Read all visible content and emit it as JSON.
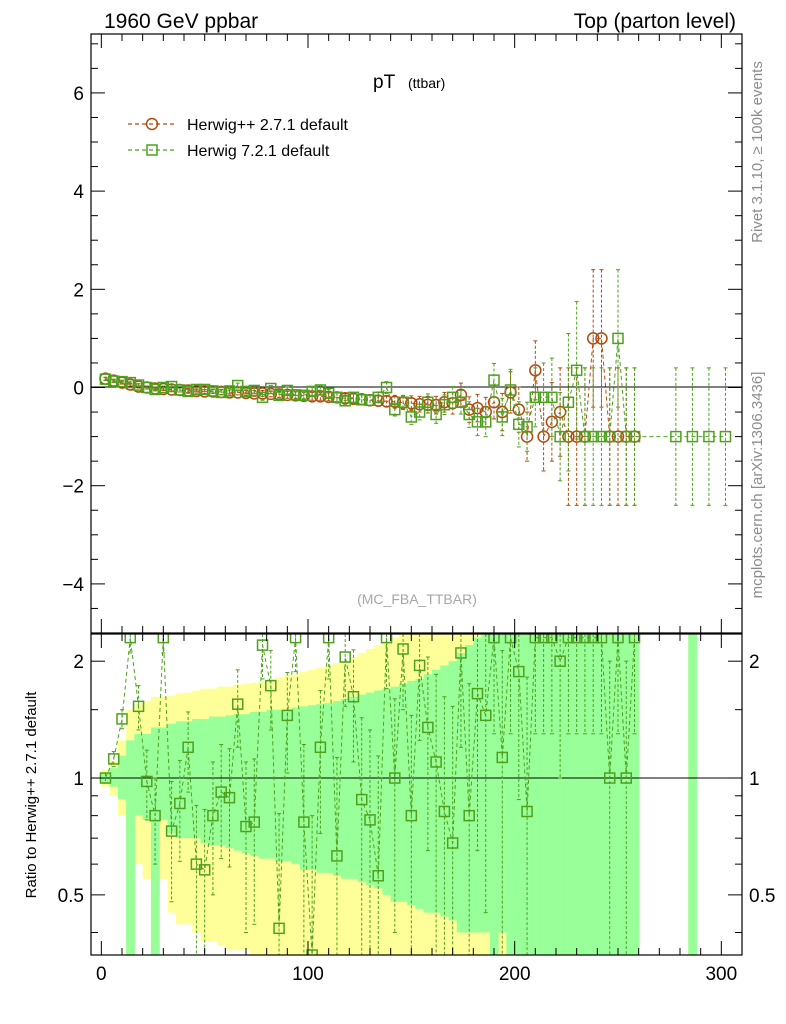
{
  "header": {
    "left": "1960 GeV ppbar",
    "right": "Top (parton level)"
  },
  "side_labels": {
    "rivet": "Rivet 3.1.10, ≥ 100k events",
    "mcplots": "mcplots.cern.ch [arXiv:1306.3436]"
  },
  "chart_data": [
    {
      "type": "line",
      "title_main": "pT",
      "title_sub": "(ttbar)",
      "watermark": "(MC_FBA_TTBAR)",
      "xlim": [
        -5,
        310
      ],
      "ylim": [
        -5,
        7.2
      ],
      "yticks": [
        -4,
        -2,
        0,
        2,
        4,
        6
      ],
      "ytick_labels": [
        "−4",
        "−2",
        "0",
        "2",
        "4",
        "6"
      ],
      "legend_position": "top-left",
      "series": [
        {
          "name": "Herwig++ 2.7.1 default",
          "color": "#b04a0e",
          "marker": "circle",
          "x": [
            2,
            6,
            10,
            14,
            18,
            22,
            26,
            30,
            34,
            38,
            42,
            46,
            50,
            54,
            58,
            62,
            66,
            70,
            74,
            78,
            82,
            86,
            90,
            94,
            98,
            102,
            106,
            110,
            114,
            118,
            122,
            126,
            130,
            134,
            138,
            142,
            146,
            150,
            154,
            158,
            162,
            166,
            170,
            174,
            178,
            182,
            186,
            190,
            194,
            198,
            202,
            206,
            210,
            214,
            218,
            222,
            226,
            230,
            234,
            238,
            242,
            246,
            250,
            254,
            258
          ],
          "y": [
            0.18,
            0.14,
            0.1,
            0.06,
            0.02,
            0.0,
            -0.02,
            -0.03,
            -0.04,
            -0.05,
            -0.06,
            -0.07,
            -0.08,
            -0.08,
            -0.09,
            -0.1,
            -0.1,
            -0.11,
            -0.12,
            -0.12,
            -0.13,
            -0.14,
            -0.15,
            -0.16,
            -0.17,
            -0.18,
            -0.18,
            -0.19,
            -0.2,
            -0.22,
            -0.23,
            -0.24,
            -0.26,
            -0.27,
            -0.28,
            -0.29,
            -0.31,
            -0.32,
            -0.34,
            -0.35,
            -0.36,
            -0.3,
            -0.32,
            -0.15,
            -0.45,
            -0.42,
            -0.5,
            -0.3,
            -0.5,
            -0.1,
            -0.45,
            -1.0,
            0.35,
            -1.0,
            -0.7,
            -0.5,
            -1.0,
            -1.0,
            -1.0,
            1.0,
            1.0,
            -1.0,
            -1.0,
            -1.0,
            -1.0
          ],
          "yerr": [
            0.03,
            0.03,
            0.03,
            0.03,
            0.03,
            0.03,
            0.03,
            0.03,
            0.03,
            0.04,
            0.04,
            0.04,
            0.04,
            0.04,
            0.05,
            0.05,
            0.05,
            0.05,
            0.06,
            0.06,
            0.06,
            0.06,
            0.07,
            0.07,
            0.07,
            0.08,
            0.08,
            0.08,
            0.09,
            0.09,
            0.1,
            0.1,
            0.11,
            0.11,
            0.12,
            0.13,
            0.14,
            0.15,
            0.16,
            0.17,
            0.18,
            0.2,
            0.22,
            0.24,
            0.26,
            0.28,
            0.3,
            0.34,
            0.38,
            0.42,
            0.46,
            0.5,
            0.6,
            0.7,
            0.8,
            0.9,
            1.4,
            1.4,
            1.4,
            1.4,
            1.4,
            1.4,
            1.4,
            1.4,
            1.4
          ]
        },
        {
          "name": "Herwig 7.2.1 default",
          "color": "#4ea01e",
          "marker": "square",
          "x": [
            2,
            6,
            10,
            14,
            18,
            22,
            26,
            30,
            34,
            38,
            42,
            46,
            50,
            54,
            58,
            62,
            66,
            70,
            74,
            78,
            82,
            86,
            90,
            94,
            98,
            102,
            106,
            110,
            114,
            118,
            122,
            126,
            130,
            134,
            138,
            142,
            146,
            150,
            154,
            158,
            162,
            166,
            170,
            174,
            178,
            182,
            186,
            190,
            194,
            198,
            202,
            206,
            210,
            214,
            218,
            222,
            226,
            230,
            234,
            238,
            242,
            246,
            250,
            254,
            258,
            278,
            286,
            294,
            302
          ],
          "y": [
            0.17,
            0.13,
            0.12,
            0.1,
            0.05,
            0.0,
            -0.04,
            0.0,
            0.02,
            -0.05,
            -0.08,
            -0.04,
            -0.04,
            -0.07,
            -0.1,
            -0.07,
            0.04,
            -0.08,
            -0.06,
            -0.2,
            -0.02,
            -0.16,
            -0.06,
            -0.15,
            -0.16,
            -0.08,
            -0.05,
            -0.12,
            -0.2,
            -0.27,
            -0.2,
            -0.25,
            -0.26,
            -0.2,
            0.0,
            -0.45,
            -0.3,
            -0.6,
            -0.5,
            -0.3,
            -0.55,
            -0.35,
            -0.2,
            -0.3,
            -0.55,
            -0.7,
            -0.7,
            0.15,
            -0.6,
            -0.05,
            -0.75,
            -0.8,
            -0.2,
            -0.2,
            -0.2,
            -1.0,
            -0.3,
            0.35,
            -1.0,
            -1.0,
            -1.0,
            -1.0,
            1.0,
            -1.0,
            -1.0,
            -1.0,
            -1.0,
            -1.0,
            -1.0
          ],
          "yerr": [
            0.03,
            0.03,
            0.03,
            0.03,
            0.03,
            0.03,
            0.03,
            0.03,
            0.03,
            0.04,
            0.04,
            0.04,
            0.04,
            0.04,
            0.05,
            0.05,
            0.05,
            0.05,
            0.06,
            0.06,
            0.06,
            0.06,
            0.07,
            0.07,
            0.07,
            0.08,
            0.08,
            0.08,
            0.09,
            0.09,
            0.1,
            0.1,
            0.11,
            0.11,
            0.12,
            0.13,
            0.14,
            0.15,
            0.16,
            0.17,
            0.18,
            0.2,
            0.22,
            0.24,
            0.26,
            0.28,
            0.3,
            0.34,
            0.38,
            0.42,
            0.46,
            0.5,
            0.6,
            0.7,
            0.8,
            0.9,
            1.4,
            1.4,
            1.4,
            1.4,
            1.4,
            1.4,
            1.4,
            1.4,
            1.4,
            1.4,
            1.4,
            1.4,
            1.4
          ]
        }
      ]
    },
    {
      "type": "line",
      "ylabel": "Ratio to Herwig++ 2.7.1 default",
      "xlim": [
        -5,
        310
      ],
      "ylim": [
        0.35,
        2.35
      ],
      "xticks": [
        0,
        100,
        200,
        300
      ],
      "yticks": [
        0.5,
        1,
        2
      ],
      "ytick_labels": [
        "0.5",
        "1",
        "2"
      ],
      "bands": {
        "x": [
          2,
          6,
          10,
          14,
          18,
          22,
          26,
          30,
          34,
          38,
          42,
          46,
          50,
          54,
          58,
          62,
          66,
          70,
          74,
          78,
          82,
          86,
          90,
          94,
          98,
          102,
          106,
          110,
          114,
          118,
          122,
          126,
          130,
          134,
          138,
          142,
          146,
          150,
          154,
          158,
          162,
          166,
          170,
          174,
          178,
          182,
          186,
          190,
          194,
          198,
          202,
          206,
          210,
          214,
          218,
          222,
          226,
          230,
          234,
          238,
          242,
          246,
          250,
          254,
          258,
          286
        ],
        "inner_lo": [
          0.97,
          0.95,
          0.88,
          0.35,
          0.8,
          0.78,
          0.35,
          0.78,
          0.72,
          0.7,
          0.7,
          0.7,
          0.68,
          0.67,
          0.67,
          0.66,
          0.65,
          0.64,
          0.63,
          0.62,
          0.62,
          0.61,
          0.61,
          0.6,
          0.58,
          0.58,
          0.57,
          0.57,
          0.56,
          0.55,
          0.55,
          0.54,
          0.53,
          0.52,
          0.5,
          0.48,
          0.48,
          0.47,
          0.46,
          0.45,
          0.45,
          0.44,
          0.43,
          0.4,
          0.4,
          0.4,
          0.4,
          0.35,
          0.4,
          0.35,
          0.35,
          0.35,
          0.35,
          0.35,
          0.35,
          0.35,
          0.35,
          0.35,
          0.35,
          0.35,
          0.35,
          0.35,
          0.35,
          0.35,
          0.35,
          0.35
        ],
        "inner_hi": [
          1.03,
          1.06,
          1.14,
          1.25,
          1.3,
          1.3,
          1.35,
          1.35,
          1.38,
          1.4,
          1.4,
          1.42,
          1.42,
          1.44,
          1.44,
          1.45,
          1.46,
          1.46,
          1.48,
          1.48,
          1.5,
          1.5,
          1.5,
          1.52,
          1.53,
          1.54,
          1.55,
          1.56,
          1.58,
          1.6,
          1.62,
          1.64,
          1.66,
          1.68,
          1.7,
          1.72,
          1.75,
          1.78,
          1.8,
          1.85,
          1.9,
          1.95,
          2.0,
          2.1,
          2.2,
          2.3,
          2.35,
          2.35,
          2.35,
          2.35,
          2.35,
          2.35,
          2.35,
          2.35,
          2.35,
          2.35,
          2.35,
          2.35,
          2.35,
          2.35,
          2.35,
          2.35,
          2.35,
          2.35,
          2.35,
          2.35
        ],
        "outer_lo": [
          0.95,
          0.9,
          0.8,
          0.35,
          0.6,
          0.55,
          0.35,
          0.55,
          0.45,
          0.42,
          0.42,
          0.4,
          0.38,
          0.38,
          0.37,
          0.36,
          0.36,
          0.36,
          0.35,
          0.35,
          0.35,
          0.35,
          0.35,
          0.35,
          0.35,
          0.35,
          0.35,
          0.35,
          0.35,
          0.35,
          0.35,
          0.35,
          0.35,
          0.35,
          0.35,
          0.35,
          0.35,
          0.35,
          0.35,
          0.35,
          0.35,
          0.35,
          0.35,
          0.35,
          0.35,
          0.35,
          0.35,
          0.35,
          0.35,
          0.35,
          0.35,
          0.35,
          0.35,
          0.35,
          0.35,
          0.35,
          0.35,
          0.35,
          0.35,
          0.35,
          0.35,
          0.35,
          0.35,
          0.35,
          0.35,
          0.35
        ],
        "outer_hi": [
          1.05,
          1.1,
          1.25,
          1.5,
          1.55,
          1.58,
          1.62,
          1.62,
          1.63,
          1.65,
          1.66,
          1.68,
          1.7,
          1.7,
          1.72,
          1.72,
          1.74,
          1.75,
          1.76,
          1.78,
          1.8,
          1.82,
          1.84,
          1.85,
          1.88,
          1.9,
          1.92,
          1.95,
          1.98,
          2.0,
          2.05,
          2.1,
          2.15,
          2.2,
          2.25,
          2.3,
          2.35,
          2.35,
          2.35,
          2.35,
          2.35,
          2.35,
          2.35,
          2.35,
          2.35,
          2.35,
          2.35,
          2.35,
          2.35,
          2.35,
          2.35,
          2.35,
          2.35,
          2.35,
          2.35,
          2.35,
          2.35,
          2.35,
          2.35,
          2.35,
          2.35,
          2.35,
          2.35,
          2.35,
          2.35,
          2.35
        ],
        "inner_color": "#99ff99",
        "outer_color": "#ffff99"
      },
      "series": [
        {
          "name": "Herwig 7.2.1 default",
          "color": "#4ea01e",
          "marker": "square",
          "x": [
            2,
            6,
            10,
            14,
            18,
            22,
            26,
            30,
            34,
            38,
            42,
            46,
            50,
            54,
            58,
            62,
            66,
            70,
            74,
            78,
            82,
            86,
            90,
            94,
            98,
            102,
            106,
            110,
            114,
            118,
            122,
            126,
            130,
            134,
            138,
            142,
            146,
            150,
            154,
            158,
            162,
            166,
            170,
            174,
            178,
            182,
            186,
            190,
            194,
            198,
            202,
            206,
            210,
            214,
            218,
            222,
            226,
            230,
            234,
            238,
            242,
            246,
            250,
            254,
            258
          ],
          "y": [
            1.0,
            1.12,
            1.42,
            2.3,
            1.53,
            0.98,
            0.8,
            2.3,
            0.73,
            0.86,
            1.2,
            0.6,
            0.58,
            0.8,
            0.92,
            0.89,
            1.55,
            0.75,
            0.77,
            2.2,
            1.73,
            0.41,
            1.45,
            2.3,
            0.77,
            0.35,
            1.2,
            2.3,
            0.63,
            2.05,
            1.62,
            0.88,
            0.78,
            0.56,
            2.3,
            1.0,
            2.15,
            0.8,
            1.95,
            1.35,
            1.1,
            0.82,
            0.68,
            2.1,
            0.8,
            1.65,
            1.45,
            2.3,
            1.13,
            2.3,
            1.88,
            0.82,
            2.3,
            2.3,
            2.3,
            2.0,
            2.3,
            2.3,
            2.3,
            2.3,
            2.3,
            1.0,
            2.3,
            1.0,
            2.3
          ],
          "yerr": [
            0.03,
            0.05,
            0.08,
            0.2,
            0.2,
            0.2,
            0.2,
            0.2,
            0.25,
            0.25,
            0.28,
            0.25,
            0.25,
            0.3,
            0.3,
            0.3,
            0.35,
            0.35,
            0.35,
            0.4,
            0.4,
            0.4,
            0.42,
            0.42,
            0.45,
            0.45,
            0.48,
            0.5,
            0.5,
            0.52,
            0.52,
            0.55,
            0.55,
            0.58,
            0.6,
            0.6,
            0.65,
            0.65,
            0.7,
            0.7,
            0.75,
            0.8,
            0.85,
            0.9,
            0.95,
            1.0,
            1.0,
            1.0,
            1.0,
            1.0,
            1.0,
            1.0,
            1.0,
            1.0,
            1.0,
            1.0,
            1.0,
            1.0,
            1.0,
            1.0,
            1.0,
            1.0,
            1.0,
            1.0,
            1.0
          ]
        }
      ]
    }
  ]
}
